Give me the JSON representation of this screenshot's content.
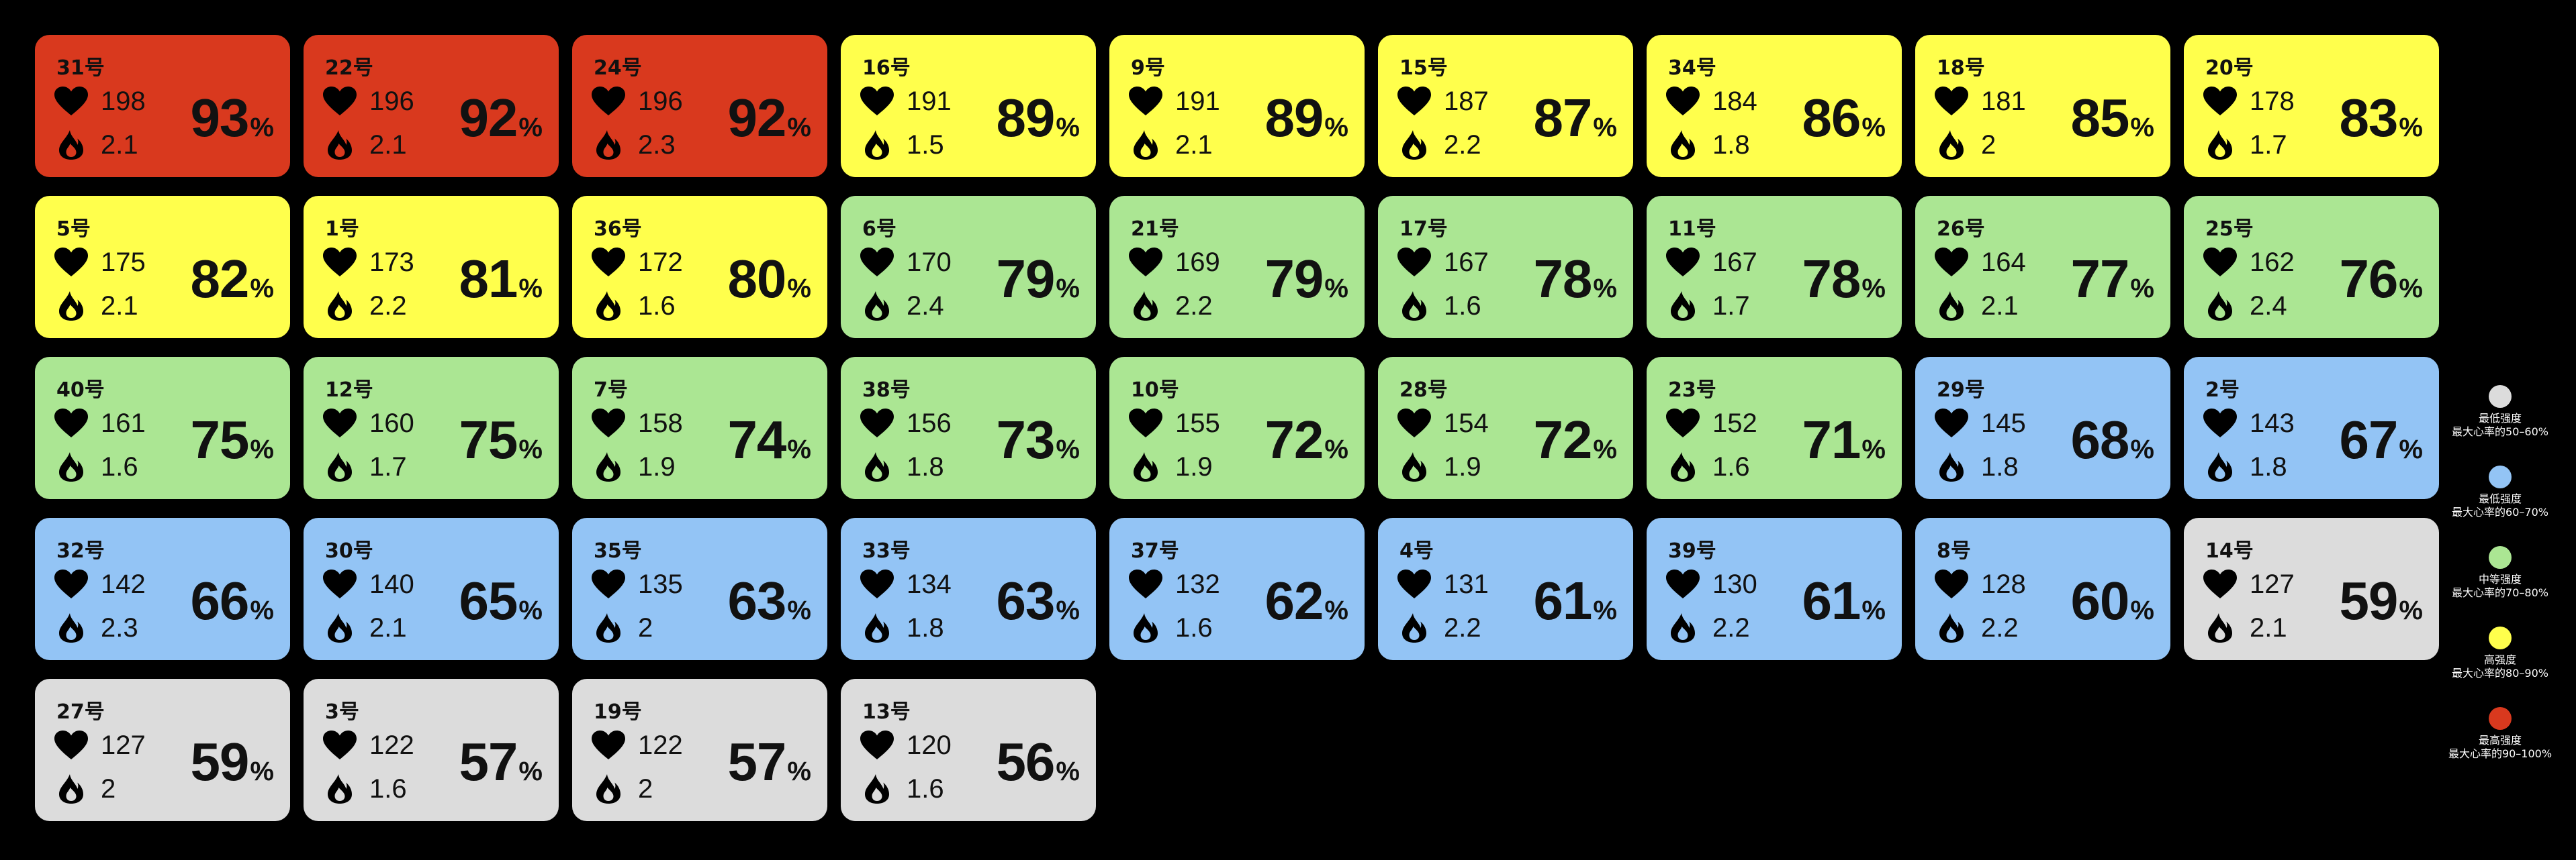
{
  "colors": {
    "red": "#d9391e",
    "yellow": "#ffff4c",
    "green": "#abe693",
    "blue": "#93c4f5",
    "gray": "#dcdcdc"
  },
  "icons": {
    "heart_rate": "heart-icon",
    "calories": "flame-icon"
  },
  "percent_sign": "%",
  "cards": [
    {
      "id": "31号",
      "hr": "198",
      "kcal": "2.1",
      "pct": "93",
      "zone": "red"
    },
    {
      "id": "22号",
      "hr": "196",
      "kcal": "2.1",
      "pct": "92",
      "zone": "red"
    },
    {
      "id": "24号",
      "hr": "196",
      "kcal": "2.3",
      "pct": "92",
      "zone": "red"
    },
    {
      "id": "16号",
      "hr": "191",
      "kcal": "1.5",
      "pct": "89",
      "zone": "yellow"
    },
    {
      "id": "9号",
      "hr": "191",
      "kcal": "2.1",
      "pct": "89",
      "zone": "yellow"
    },
    {
      "id": "15号",
      "hr": "187",
      "kcal": "2.2",
      "pct": "87",
      "zone": "yellow"
    },
    {
      "id": "34号",
      "hr": "184",
      "kcal": "1.8",
      "pct": "86",
      "zone": "yellow"
    },
    {
      "id": "18号",
      "hr": "181",
      "kcal": "2",
      "pct": "85",
      "zone": "yellow"
    },
    {
      "id": "20号",
      "hr": "178",
      "kcal": "1.7",
      "pct": "83",
      "zone": "yellow"
    },
    {
      "id": "5号",
      "hr": "175",
      "kcal": "2.1",
      "pct": "82",
      "zone": "yellow"
    },
    {
      "id": "1号",
      "hr": "173",
      "kcal": "2.2",
      "pct": "81",
      "zone": "yellow"
    },
    {
      "id": "36号",
      "hr": "172",
      "kcal": "1.6",
      "pct": "80",
      "zone": "yellow"
    },
    {
      "id": "6号",
      "hr": "170",
      "kcal": "2.4",
      "pct": "79",
      "zone": "green"
    },
    {
      "id": "21号",
      "hr": "169",
      "kcal": "2.2",
      "pct": "79",
      "zone": "green"
    },
    {
      "id": "17号",
      "hr": "167",
      "kcal": "1.6",
      "pct": "78",
      "zone": "green"
    },
    {
      "id": "11号",
      "hr": "167",
      "kcal": "1.7",
      "pct": "78",
      "zone": "green"
    },
    {
      "id": "26号",
      "hr": "164",
      "kcal": "2.1",
      "pct": "77",
      "zone": "green"
    },
    {
      "id": "25号",
      "hr": "162",
      "kcal": "2.4",
      "pct": "76",
      "zone": "green"
    },
    {
      "id": "40号",
      "hr": "161",
      "kcal": "1.6",
      "pct": "75",
      "zone": "green"
    },
    {
      "id": "12号",
      "hr": "160",
      "kcal": "1.7",
      "pct": "75",
      "zone": "green"
    },
    {
      "id": "7号",
      "hr": "158",
      "kcal": "1.9",
      "pct": "74",
      "zone": "green"
    },
    {
      "id": "38号",
      "hr": "156",
      "kcal": "1.8",
      "pct": "73",
      "zone": "green"
    },
    {
      "id": "10号",
      "hr": "155",
      "kcal": "1.9",
      "pct": "72",
      "zone": "green"
    },
    {
      "id": "28号",
      "hr": "154",
      "kcal": "1.9",
      "pct": "72",
      "zone": "green"
    },
    {
      "id": "23号",
      "hr": "152",
      "kcal": "1.6",
      "pct": "71",
      "zone": "green"
    },
    {
      "id": "29号",
      "hr": "145",
      "kcal": "1.8",
      "pct": "68",
      "zone": "blue"
    },
    {
      "id": "2号",
      "hr": "143",
      "kcal": "1.8",
      "pct": "67",
      "zone": "blue"
    },
    {
      "id": "32号",
      "hr": "142",
      "kcal": "2.3",
      "pct": "66",
      "zone": "blue"
    },
    {
      "id": "30号",
      "hr": "140",
      "kcal": "2.1",
      "pct": "65",
      "zone": "blue"
    },
    {
      "id": "35号",
      "hr": "135",
      "kcal": "2",
      "pct": "63",
      "zone": "blue"
    },
    {
      "id": "33号",
      "hr": "134",
      "kcal": "1.8",
      "pct": "63",
      "zone": "blue"
    },
    {
      "id": "37号",
      "hr": "132",
      "kcal": "1.6",
      "pct": "62",
      "zone": "blue"
    },
    {
      "id": "4号",
      "hr": "131",
      "kcal": "2.2",
      "pct": "61",
      "zone": "blue"
    },
    {
      "id": "39号",
      "hr": "130",
      "kcal": "2.2",
      "pct": "61",
      "zone": "blue"
    },
    {
      "id": "8号",
      "hr": "128",
      "kcal": "2.2",
      "pct": "60",
      "zone": "blue"
    },
    {
      "id": "14号",
      "hr": "127",
      "kcal": "2.1",
      "pct": "59",
      "zone": "gray"
    },
    {
      "id": "27号",
      "hr": "127",
      "kcal": "2",
      "pct": "59",
      "zone": "gray"
    },
    {
      "id": "3号",
      "hr": "122",
      "kcal": "1.6",
      "pct": "57",
      "zone": "gray"
    },
    {
      "id": "19号",
      "hr": "122",
      "kcal": "2",
      "pct": "57",
      "zone": "gray"
    },
    {
      "id": "13号",
      "hr": "120",
      "kcal": "1.6",
      "pct": "56",
      "zone": "gray"
    }
  ],
  "legend": [
    {
      "zone": "gray",
      "name": "最低强度",
      "range": "最大心率的50–60%"
    },
    {
      "zone": "blue",
      "name": "最低强度",
      "range": "最大心率的60–70%"
    },
    {
      "zone": "green",
      "name": "中等强度",
      "range": "最大心率的70–80%"
    },
    {
      "zone": "yellow",
      "name": "高强度",
      "range": "最大心率的80–90%"
    },
    {
      "zone": "red",
      "name": "最高强度",
      "range": "最大心率的90–100%"
    }
  ]
}
